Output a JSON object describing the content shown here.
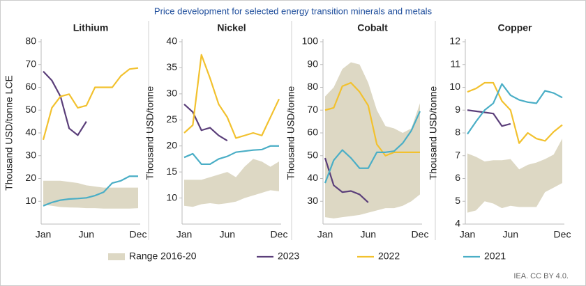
{
  "title": "Price development for selected energy transition minerals and metals",
  "source": "IEA. CC BY 4.0.",
  "chart_data": [
    {
      "type": "line",
      "title": "Lithium",
      "y_label": "Thousand USD/tonne LCE",
      "categories": [
        "Jan",
        null,
        null,
        null,
        null,
        "Jun",
        null,
        null,
        null,
        null,
        null,
        "Dec"
      ],
      "ylim": [
        0,
        80
      ],
      "yticks": [
        10,
        20,
        30,
        40,
        50,
        60,
        70,
        80
      ],
      "range": {
        "name": "Range 2016-20",
        "color": "#ddd8c4",
        "low": [
          8.5,
          8,
          7.5,
          7.3,
          7.2,
          7,
          7,
          6.8,
          6.8,
          6.8,
          6.8,
          7
        ],
        "high": [
          19,
          19,
          19,
          18.5,
          18,
          17,
          16.5,
          16,
          16,
          16,
          16,
          16
        ]
      },
      "series": [
        {
          "name": "2023",
          "color": "#5b3f7a",
          "values": [
            67,
            63,
            56,
            42,
            39,
            45,
            null,
            null,
            null,
            null,
            null,
            null
          ]
        },
        {
          "name": "2022",
          "color": "#f2c12e",
          "values": [
            37,
            51,
            56,
            57,
            51,
            52,
            60,
            60,
            60,
            65,
            68,
            68.5
          ]
        },
        {
          "name": "2021",
          "color": "#4aaec6",
          "values": [
            8,
            9.5,
            10.5,
            11,
            11.2,
            11.5,
            12.5,
            14,
            18,
            19,
            21,
            21
          ]
        }
      ]
    },
    {
      "type": "line",
      "title": "Nickel",
      "y_label": "Thousand USD/tonne",
      "categories": [
        "Jan",
        null,
        null,
        null,
        null,
        "Jun",
        null,
        null,
        null,
        null,
        null,
        "Dec"
      ],
      "ylim": [
        5,
        40
      ],
      "yticks": [
        10,
        15,
        20,
        25,
        30,
        35,
        40
      ],
      "range": {
        "name": "Range 2016-20",
        "color": "#ddd8c4",
        "low": [
          8.5,
          8.3,
          8.8,
          9,
          8.8,
          9,
          9.3,
          10,
          10.5,
          11,
          11.5,
          11.3
        ],
        "high": [
          13.5,
          13.5,
          13.5,
          14,
          14.5,
          15,
          14,
          16,
          17.5,
          17,
          16,
          17
        ]
      },
      "series": [
        {
          "name": "2023",
          "color": "#5b3f7a",
          "values": [
            28,
            26.5,
            23,
            23.5,
            22,
            21,
            null,
            null,
            null,
            null,
            null,
            null
          ]
        },
        {
          "name": "2022",
          "color": "#f2c12e",
          "values": [
            22.5,
            24,
            37.5,
            33,
            28,
            25.5,
            21.5,
            22,
            22.5,
            22,
            25.5,
            29
          ]
        },
        {
          "name": "2021",
          "color": "#4aaec6",
          "values": [
            17.8,
            18.5,
            16.5,
            16.5,
            17.5,
            18,
            18.8,
            19,
            19.2,
            19.3,
            20,
            20
          ]
        }
      ]
    },
    {
      "type": "line",
      "title": "Cobalt",
      "y_label": "Thousand USD/tonne",
      "categories": [
        "Jan",
        null,
        null,
        null,
        null,
        "Jun",
        null,
        null,
        null,
        null,
        null,
        "Dec"
      ],
      "ylim": [
        20,
        100
      ],
      "yticks": [
        30,
        40,
        50,
        60,
        70,
        80,
        90,
        100
      ],
      "range": {
        "name": "Range 2016-20",
        "color": "#ddd8c4",
        "low": [
          23,
          22.5,
          23,
          23.5,
          24,
          25,
          26,
          27,
          27,
          28,
          30,
          33
        ],
        "high": [
          76,
          80,
          88,
          91,
          90,
          82,
          70,
          63,
          62,
          60,
          62,
          73
        ]
      },
      "series": [
        {
          "name": "2023",
          "color": "#5b3f7a",
          "values": [
            49,
            37,
            34,
            34.5,
            33,
            29.5,
            null,
            null,
            null,
            null,
            null,
            null
          ]
        },
        {
          "name": "2022",
          "color": "#f2c12e",
          "values": [
            70,
            71,
            80.5,
            82,
            78,
            72,
            55,
            50,
            51.5,
            51.5,
            51.5,
            51.5
          ]
        },
        {
          "name": "2021",
          "color": "#4aaec6",
          "values": [
            38,
            48,
            52.5,
            49,
            44.5,
            44.5,
            51.5,
            51.5,
            52,
            55.5,
            61,
            69.5
          ]
        }
      ]
    },
    {
      "type": "line",
      "title": "Copper",
      "y_label": "Thousand USD/tonne",
      "categories": [
        "Jan",
        null,
        null,
        null,
        null,
        "Jun",
        null,
        null,
        null,
        null,
        null,
        "Dec"
      ],
      "ylim": [
        4,
        12
      ],
      "yticks": [
        4,
        5,
        6,
        7,
        8,
        9,
        10,
        11,
        12
      ],
      "range": {
        "name": "Range 2016-20",
        "color": "#ddd8c4",
        "low": [
          4.5,
          4.6,
          5.0,
          4.9,
          4.7,
          4.8,
          4.75,
          4.75,
          4.75,
          5.4,
          5.6,
          5.8
        ],
        "high": [
          7.1,
          6.95,
          6.75,
          6.8,
          6.8,
          6.85,
          6.4,
          6.6,
          6.7,
          6.85,
          7.05,
          7.75
        ]
      },
      "series": [
        {
          "name": "2023",
          "color": "#5b3f7a",
          "values": [
            9,
            8.95,
            8.9,
            8.85,
            8.3,
            8.4,
            null,
            null,
            null,
            null,
            null,
            null
          ]
        },
        {
          "name": "2022",
          "color": "#f2c12e",
          "values": [
            9.8,
            9.95,
            10.2,
            10.2,
            9.4,
            9.0,
            7.55,
            8.0,
            7.75,
            7.65,
            8.05,
            8.35
          ]
        },
        {
          "name": "2021",
          "color": "#4aaec6",
          "values": [
            7.95,
            8.5,
            9.0,
            9.3,
            10.15,
            9.65,
            9.45,
            9.35,
            9.3,
            9.85,
            9.75,
            9.55
          ]
        }
      ]
    }
  ]
}
